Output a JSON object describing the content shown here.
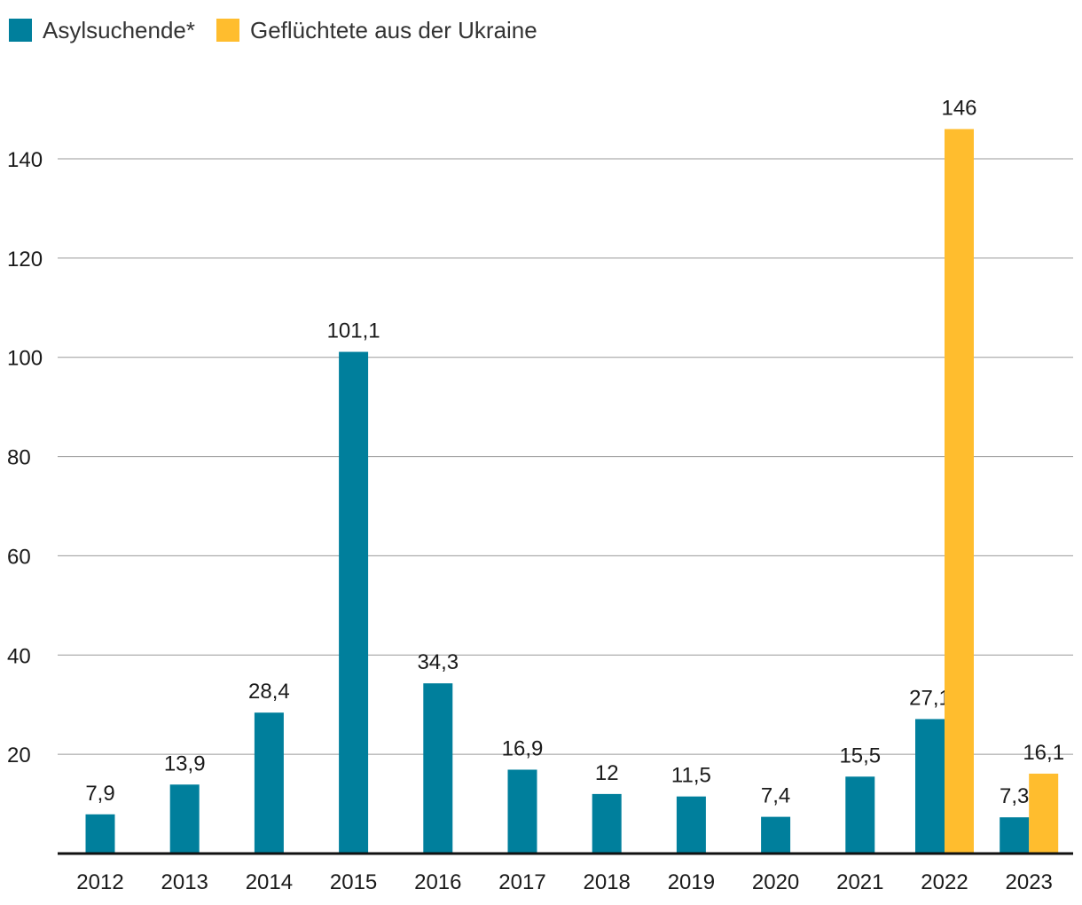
{
  "legend": [
    {
      "label": "Asylsuchende*",
      "color": "#007f9c"
    },
    {
      "label": "Geflüchtete aus der Ukraine",
      "color": "#ffbd2e"
    }
  ],
  "chart_data": {
    "type": "bar",
    "title": "",
    "xlabel": "",
    "ylabel": "",
    "ylim": [
      0,
      140
    ],
    "yticks": [
      20,
      40,
      60,
      80,
      100,
      120,
      140
    ],
    "grid": true,
    "legend_position": "top-left",
    "categories": [
      "2012",
      "2013",
      "2014",
      "2015",
      "2016",
      "2017",
      "2018",
      "2019",
      "2020",
      "2021",
      "2022",
      "2023"
    ],
    "series": [
      {
        "name": "Asylsuchende*",
        "color": "#007f9c",
        "values": [
          7.9,
          13.9,
          28.4,
          101.1,
          34.3,
          16.9,
          12,
          11.5,
          7.4,
          15.5,
          27.1,
          7.3
        ],
        "labels": [
          "7,9",
          "13,9",
          "28,4",
          "101,1",
          "34,3",
          "16,9",
          "12",
          "11,5",
          "7,4",
          "15,5",
          "27,1",
          "7,3"
        ]
      },
      {
        "name": "Geflüchtete aus der Ukraine",
        "color": "#ffbd2e",
        "values": [
          null,
          null,
          null,
          null,
          null,
          null,
          null,
          null,
          null,
          null,
          146,
          16.1
        ],
        "labels": [
          "",
          "",
          "",
          "",
          "",
          "",
          "",
          "",
          "",
          "",
          "146",
          "16,1"
        ]
      }
    ]
  }
}
